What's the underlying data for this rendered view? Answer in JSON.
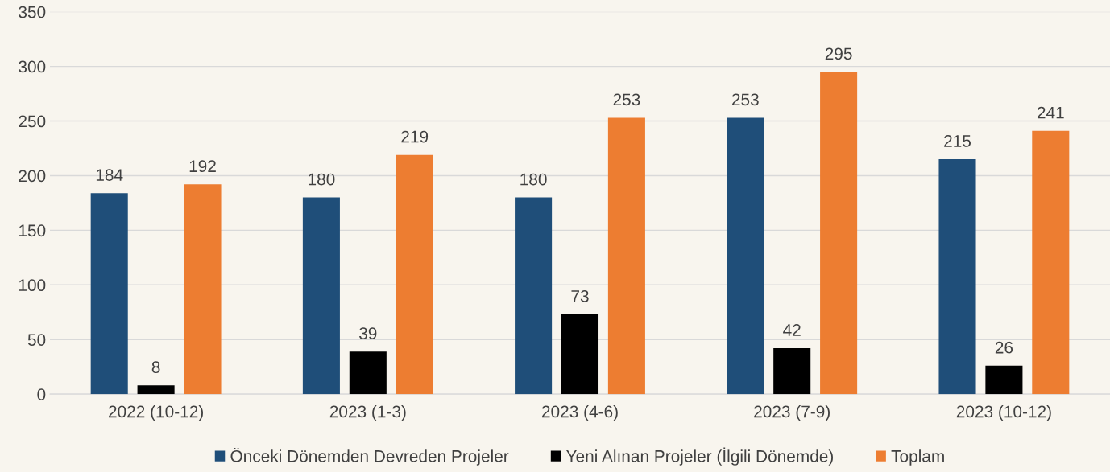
{
  "chart_data": {
    "type": "bar",
    "categories": [
      "2022 (10-12)",
      "2023 (1-3)",
      "2023 (4-6)",
      "2023 (7-9)",
      "2023 (10-12)"
    ],
    "series": [
      {
        "name": "Önceki Dönemden Devreden Projeler",
        "color": "#1f4e79",
        "values": [
          184,
          180,
          180,
          253,
          215
        ]
      },
      {
        "name": "Yeni Alınan Projeler (İlgili Dönemde)",
        "color": "#000000",
        "values": [
          8,
          39,
          73,
          42,
          26
        ]
      },
      {
        "name": "Toplam",
        "color": "#ed7d31",
        "values": [
          192,
          219,
          253,
          295,
          241
        ]
      }
    ],
    "ylim": [
      0,
      350
    ],
    "yticks": [
      0,
      50,
      100,
      150,
      200,
      250,
      300,
      350
    ],
    "grid": "y",
    "data_labels": true,
    "legend": "bottom"
  }
}
